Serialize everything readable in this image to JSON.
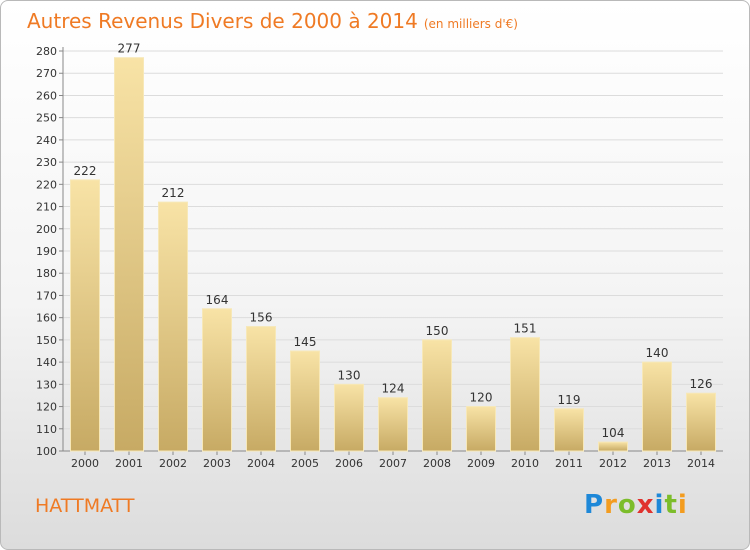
{
  "title": "Autres Revenus Divers de 2000 à 2014",
  "subtitle": "(en milliers d'€)",
  "location": "HATTMATT",
  "logo": {
    "text": "Proxiti",
    "letters": [
      {
        "char": "P",
        "color": "#1e88d8"
      },
      {
        "char": "r",
        "color": "#f39c1f"
      },
      {
        "char": "o",
        "color": "#7cbd2a"
      },
      {
        "char": "x",
        "color": "#e0322e"
      },
      {
        "char": "i",
        "color": "#1e88d8"
      },
      {
        "char": "t",
        "color": "#7cbd2a"
      },
      {
        "char": "i",
        "color": "#f39c1f"
      }
    ]
  },
  "colors": {
    "title": "#ef7a24",
    "bar_top": "#f8e3a6",
    "bar_bottom": "#c7aa64",
    "grid": "#dcdcdc",
    "axis": "#888888"
  },
  "chart_data": {
    "type": "bar",
    "categories": [
      "2000",
      "2001",
      "2002",
      "2003",
      "2004",
      "2005",
      "2006",
      "2007",
      "2008",
      "2009",
      "2010",
      "2011",
      "2012",
      "2013",
      "2014"
    ],
    "values": [
      222,
      277,
      212,
      164,
      156,
      145,
      130,
      124,
      150,
      120,
      151,
      119,
      104,
      140,
      126
    ],
    "ylim": [
      100,
      280
    ],
    "yticks": [
      100,
      110,
      120,
      130,
      140,
      150,
      160,
      170,
      180,
      190,
      200,
      210,
      220,
      230,
      240,
      250,
      260,
      270,
      280
    ],
    "grid": true,
    "legend": "none"
  }
}
